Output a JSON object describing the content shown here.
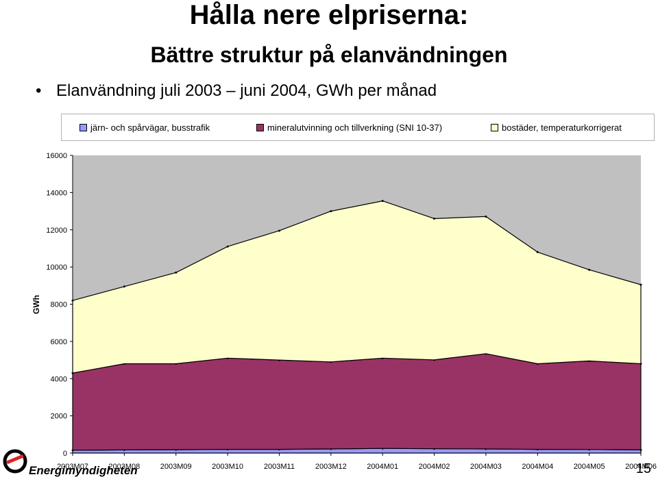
{
  "slide": {
    "title": "Hålla nere elpriserna:",
    "subtitle": "Bättre struktur på elanvändningen",
    "bullet": "Elanvändning juli 2003 – juni 2004, GWh per månad",
    "page_number": "15",
    "logo_text": "Energimyndigheten"
  },
  "colors": {
    "series_1": "#9999ff",
    "series_2": "#993366",
    "series_3": "#ffffcc",
    "plot_bg": "#c0c0c0"
  },
  "chart_data": {
    "type": "area",
    "stacked": true,
    "title": "",
    "xlabel": "",
    "ylabel": "GWh",
    "ylim": [
      0,
      16000
    ],
    "yticks": [
      0,
      2000,
      4000,
      6000,
      8000,
      10000,
      12000,
      14000,
      16000
    ],
    "grid": false,
    "legend_position": "top",
    "categories": [
      "2003M07",
      "2003M08",
      "2003M09",
      "2003M10",
      "2003M11",
      "2003M12",
      "2004M01",
      "2004M02",
      "2004M03",
      "2004M04",
      "2004M05",
      "2004M06"
    ],
    "series": [
      {
        "name": "järn- och spårvägar, busstrafik",
        "values": [
          150,
          170,
          180,
          200,
          200,
          220,
          250,
          230,
          220,
          200,
          190,
          170
        ]
      },
      {
        "name": "mineralutvinning och tillverkning (SNI 10-37)",
        "values": [
          4150,
          4630,
          4620,
          4900,
          4800,
          4680,
          4850,
          4780,
          5120,
          4600,
          4760,
          4630
        ]
      },
      {
        "name": "bostäder, temperaturkorrigerat",
        "values": [
          3900,
          4150,
          4900,
          6000,
          6950,
          8100,
          8450,
          7590,
          7370,
          6000,
          4900,
          4250
        ]
      }
    ]
  }
}
